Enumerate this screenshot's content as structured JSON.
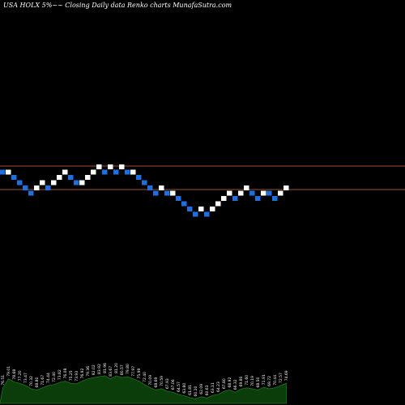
{
  "chart_data": {
    "type": "renko",
    "title": "USA HOLX  5%~~  Closing Daily data  Renko  charts MunafaSutra.com",
    "colors": {
      "background": "#000000",
      "up_brick": "#ffffff",
      "down_brick": "#1e6fe0",
      "lines": "#a0522d",
      "volume_fill": "#0b3d0b",
      "volume_line": "#1a7a1a",
      "labels": "#ffffff"
    },
    "reference_lines": [
      80.5,
      75.0
    ],
    "box_size_percent": 5,
    "bricks": [
      {
        "level": 1,
        "dir": "down"
      },
      {
        "level": 1,
        "dir": "up"
      },
      {
        "level": 0,
        "dir": "down"
      },
      {
        "level": -1,
        "dir": "down"
      },
      {
        "level": -2,
        "dir": "down"
      },
      {
        "level": -3,
        "dir": "down"
      },
      {
        "level": -2,
        "dir": "up"
      },
      {
        "level": -1,
        "dir": "up"
      },
      {
        "level": -2,
        "dir": "down"
      },
      {
        "level": -1,
        "dir": "up"
      },
      {
        "level": 0,
        "dir": "up"
      },
      {
        "level": 1,
        "dir": "up"
      },
      {
        "level": 0,
        "dir": "down"
      },
      {
        "level": -1,
        "dir": "down"
      },
      {
        "level": -1,
        "dir": "up"
      },
      {
        "level": 0,
        "dir": "up"
      },
      {
        "level": 1,
        "dir": "up"
      },
      {
        "level": 2,
        "dir": "up"
      },
      {
        "level": 1,
        "dir": "down"
      },
      {
        "level": 2,
        "dir": "up"
      },
      {
        "level": 1,
        "dir": "down"
      },
      {
        "level": 2,
        "dir": "up"
      },
      {
        "level": 1,
        "dir": "down"
      },
      {
        "level": 1,
        "dir": "up"
      },
      {
        "level": 0,
        "dir": "down"
      },
      {
        "level": -1,
        "dir": "down"
      },
      {
        "level": -2,
        "dir": "down"
      },
      {
        "level": -3,
        "dir": "down"
      },
      {
        "level": -2,
        "dir": "up"
      },
      {
        "level": -3,
        "dir": "down"
      },
      {
        "level": -3,
        "dir": "up"
      },
      {
        "level": -4,
        "dir": "down"
      },
      {
        "level": -5,
        "dir": "down"
      },
      {
        "level": -6,
        "dir": "down"
      },
      {
        "level": -7,
        "dir": "down"
      },
      {
        "level": -6,
        "dir": "up"
      },
      {
        "level": -7,
        "dir": "down"
      },
      {
        "level": -6,
        "dir": "up"
      },
      {
        "level": -5,
        "dir": "up"
      },
      {
        "level": -4,
        "dir": "up"
      },
      {
        "level": -3,
        "dir": "up"
      },
      {
        "level": -4,
        "dir": "down"
      },
      {
        "level": -3,
        "dir": "up"
      },
      {
        "level": -2,
        "dir": "up"
      },
      {
        "level": -3,
        "dir": "down"
      },
      {
        "level": -4,
        "dir": "down"
      },
      {
        "level": -3,
        "dir": "up"
      },
      {
        "level": -3,
        "dir": "down"
      },
      {
        "level": -4,
        "dir": "down"
      },
      {
        "level": -3,
        "dir": "up"
      },
      {
        "level": -2,
        "dir": "up"
      }
    ],
    "volume_profile": [
      0.35,
      0.55,
      0.48,
      0.45,
      0.4,
      0.33,
      0.3,
      0.35,
      0.4,
      0.42,
      0.47,
      0.5,
      0.45,
      0.44,
      0.5,
      0.55,
      0.58,
      0.6,
      0.62,
      0.55,
      0.62,
      0.58,
      0.6,
      0.55,
      0.5,
      0.42,
      0.35,
      0.3,
      0.33,
      0.27,
      0.25,
      0.2,
      0.17,
      0.13,
      0.1,
      0.15,
      0.12,
      0.18,
      0.2,
      0.27,
      0.3,
      0.25,
      0.32,
      0.35,
      0.33,
      0.3,
      0.36,
      0.33,
      0.35,
      0.4,
      0.45
    ],
    "price_labels": [
      "76.51",
      "79.01",
      "78.68",
      "77.20",
      "73.47",
      "70.32",
      "68.80",
      "71.67",
      "74.44",
      "72.40",
      "73.82",
      "76.08",
      "75.25",
      "73.93",
      "76.92",
      "79.36",
      "82.02",
      "83.92",
      "81.96",
      "83.67",
      "81.20",
      "80.57",
      "79.80",
      "77.97",
      "75.99",
      "72.40",
      "70.09",
      "68.69",
      "70.59",
      "67.93",
      "67.06",
      "64.57",
      "63.80",
      "61.81",
      "60.10",
      "62.09",
      "60.63",
      "63.11",
      "64.23",
      "67.80",
      "68.92",
      "66.32",
      "69.80",
      "71.60",
      "70.19",
      "68.50",
      "71.91",
      "69.72",
      "70.44",
      "72.57",
      "74.69"
    ]
  }
}
